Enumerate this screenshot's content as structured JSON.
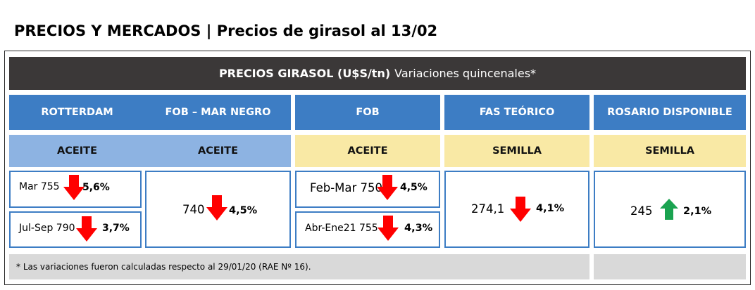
{
  "page": {
    "title": "PRECIOS Y MERCADOS | Precios de girasol al 13/02"
  },
  "table": {
    "banner_bold": "PRECIOS GIRASOL (U$S/tn)",
    "banner_rest": "Variaciones quincenales*",
    "columns": [
      {
        "header": "ROTTERDAM",
        "product": "ACEITE",
        "product_color": "#8db3e2"
      },
      {
        "header": "FOB – MAR NEGRO",
        "product": "ACEITE",
        "product_color": "#8db3e2"
      },
      {
        "header": "FOB",
        "product": "ACEITE",
        "product_color": "#f9e9a5"
      },
      {
        "header": "FAS TEÓRICO",
        "product": "SEMILLA",
        "product_color": "#f9e9a5"
      },
      {
        "header": "ROSARIO DISPONIBLE",
        "product": "SEMILLA",
        "product_color": "#f9e9a5"
      }
    ],
    "values": {
      "rotterdam": [
        {
          "label": "Mar 755",
          "change": "5,6%",
          "direction": "down"
        },
        {
          "label": "Jul-Sep 790",
          "change": "3,7%",
          "direction": "down"
        }
      ],
      "mar_negro": {
        "label": "740",
        "change": "4,5%",
        "direction": "down"
      },
      "fob": [
        {
          "label": "Feb-Mar 750",
          "change": "4,5%",
          "direction": "down"
        },
        {
          "label": "Abr-Ene21 755",
          "change": "4,3%",
          "direction": "down"
        }
      ],
      "fas_teorico": {
        "label": "274,1",
        "change": "4,1%",
        "direction": "down"
      },
      "rosario": {
        "label": "245",
        "change": "2,1%",
        "direction": "up"
      }
    },
    "footnote": "* Las variaciones fueron calculadas respecto al 29/01/20 (RAE Nº 16).",
    "colors": {
      "header_blue": "#3d7dc4",
      "banner_dark": "#3b3838",
      "down_arrow": "#ff0000",
      "up_arrow": "#1aa350",
      "footer_gray": "#d9d9d9"
    },
    "icons": {
      "down": "arrow-down-icon",
      "up": "arrow-up-icon"
    }
  }
}
